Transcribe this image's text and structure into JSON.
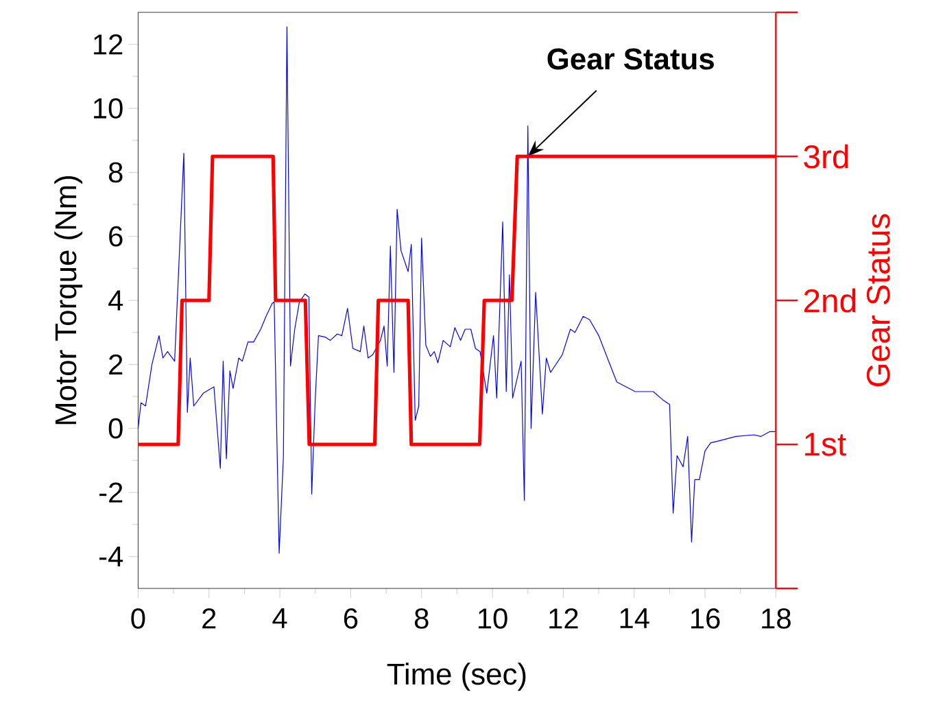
{
  "chart_data": {
    "type": "line",
    "xlabel": "Time (sec)",
    "ylabel": "Motor Torque (Nm)",
    "y2label": "Gear Status",
    "xlim": [
      0,
      18
    ],
    "ylim": [
      -5,
      13
    ],
    "xticks": [
      0,
      2,
      4,
      6,
      8,
      10,
      12,
      14,
      16,
      18
    ],
    "yticks": [
      -4,
      -2,
      0,
      2,
      4,
      6,
      8,
      10,
      12
    ],
    "y2lim": [
      0,
      4
    ],
    "y2ticks": [
      {
        "value": 0,
        "label": null
      },
      {
        "value": 1,
        "label": "1st"
      },
      {
        "value": 2,
        "label": "2nd"
      },
      {
        "value": 3,
        "label": "3rd"
      },
      {
        "value": 4,
        "label": null
      }
    ],
    "series": [
      {
        "color": "#0000ff",
        "x": [
          0,
          0.08,
          0.21,
          0.39,
          0.59,
          0.7,
          0.83,
          1.03,
          1.29,
          1.39,
          1.47,
          1.57,
          1.84,
          2.14,
          2.32,
          2.4,
          2.49,
          2.59,
          2.68,
          2.84,
          2.94,
          3.1,
          3.26,
          3.46,
          3.61,
          3.78,
          3.84,
          3.98,
          4.1,
          4.2,
          4.3,
          4.42,
          4.55,
          4.71,
          4.82,
          4.9,
          5.0,
          5.09,
          5.29,
          5.42,
          5.62,
          5.75,
          5.91,
          6.06,
          6.27,
          6.37,
          6.49,
          6.62,
          6.84,
          6.94,
          7.03,
          7.12,
          7.22,
          7.31,
          7.42,
          7.62,
          7.71,
          7.82,
          7.92,
          8.0,
          8.12,
          8.25,
          8.36,
          8.46,
          8.61,
          8.81,
          8.94,
          9.1,
          9.23,
          9.39,
          9.52,
          9.65,
          9.84,
          10.03,
          10.12,
          10.29,
          10.39,
          10.48,
          10.57,
          10.81,
          10.9,
          11.0,
          11.09,
          11.22,
          11.41,
          11.52,
          11.64,
          11.97,
          12.2,
          12.33,
          12.56,
          12.74,
          13.0,
          13.28,
          13.51,
          14.03,
          14.54,
          14.8,
          15.0,
          15.1,
          15.21,
          15.38,
          15.51,
          15.62,
          15.71,
          15.84,
          16.0,
          16.16,
          16.35,
          16.87,
          17.38,
          17.58,
          17.83,
          18.0
        ],
        "values": [
          0,
          0.8,
          0.7,
          2.0,
          2.9,
          2.2,
          2.4,
          2.1,
          8.6,
          0.5,
          2.2,
          0.7,
          1.1,
          1.3,
          -1.25,
          2.1,
          -0.95,
          1.8,
          1.25,
          2.2,
          2.1,
          2.7,
          2.7,
          3.1,
          3.5,
          3.9,
          3.95,
          -3.9,
          -0.9,
          12.55,
          1.95,
          3.1,
          3.95,
          4.2,
          4.1,
          -2.05,
          0.95,
          2.9,
          2.85,
          2.75,
          2.95,
          2.9,
          3.75,
          2.5,
          2.4,
          3.2,
          2.2,
          2.3,
          2.75,
          3.2,
          1.95,
          5.7,
          1.75,
          6.85,
          5.55,
          4.9,
          5.75,
          0.25,
          0.7,
          5.95,
          2.6,
          2.25,
          2.4,
          2.05,
          2.75,
          2.55,
          3.15,
          2.75,
          3.1,
          3.1,
          2.5,
          2.4,
          1.1,
          2.9,
          0.95,
          6.45,
          1.15,
          4.8,
          0.95,
          2.1,
          -2.25,
          9.45,
          0.0,
          4.25,
          0.45,
          2.2,
          1.75,
          2.3,
          3.1,
          3.0,
          3.5,
          3.4,
          2.9,
          2.1,
          1.45,
          1.15,
          1.15,
          0.9,
          0.75,
          -2.65,
          -0.85,
          -1.2,
          -0.25,
          -3.55,
          -1.6,
          -1.6,
          -0.7,
          -0.45,
          -0.4,
          -0.25,
          -0.2,
          -0.25,
          -0.1,
          -0.1
        ]
      },
      {
        "color": "#ff0000",
        "axis": "y2",
        "x": [
          0,
          1.13,
          1.24,
          2.0,
          2.1,
          3.81,
          3.88,
          4.72,
          4.83,
          6.68,
          6.78,
          7.62,
          7.71,
          9.64,
          9.77,
          10.55,
          10.7,
          18
        ],
        "values": [
          1,
          1,
          2,
          2,
          3,
          3,
          2,
          2,
          1,
          1,
          2,
          2,
          1,
          1,
          2,
          2,
          3,
          3
        ]
      }
    ],
    "annotations": [
      {
        "text": "Gear Status",
        "x": 11.0,
        "y": 8.5
      }
    ]
  }
}
